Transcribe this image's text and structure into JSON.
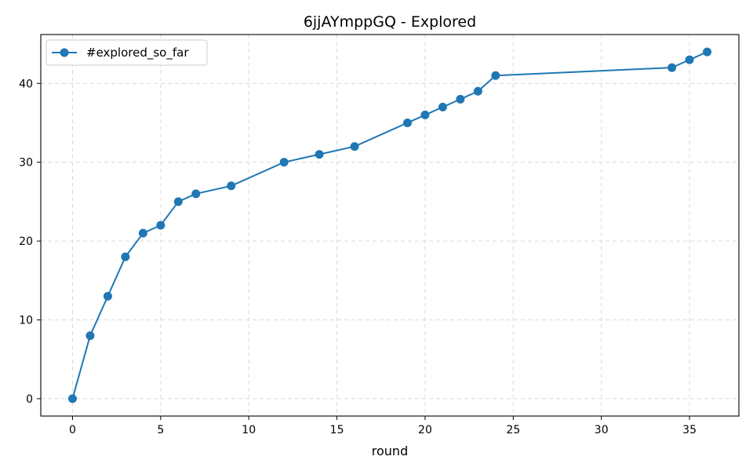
{
  "chart_data": {
    "type": "line",
    "title": "6jjAYmppGQ - Explored",
    "xlabel": "round",
    "ylabel": "",
    "xlim": [
      -1.8,
      37.8
    ],
    "ylim": [
      -2.2,
      46.2
    ],
    "xticks": [
      0,
      5,
      10,
      15,
      20,
      25,
      30,
      35
    ],
    "yticks": [
      0,
      10,
      20,
      30,
      40
    ],
    "grid": true,
    "legend_position": "top-left",
    "series": [
      {
        "name": "#explored_so_far",
        "color": "#1f77b4",
        "marker": "circle",
        "x": [
          0,
          1,
          2,
          3,
          4,
          5,
          6,
          7,
          9,
          12,
          14,
          16,
          19,
          20,
          21,
          22,
          23,
          24,
          34,
          35,
          36
        ],
        "y": [
          0,
          8,
          13,
          18,
          21,
          22,
          25,
          26,
          27,
          30,
          31,
          32,
          35,
          36,
          37,
          38,
          39,
          41,
          42,
          43,
          44
        ]
      }
    ]
  }
}
